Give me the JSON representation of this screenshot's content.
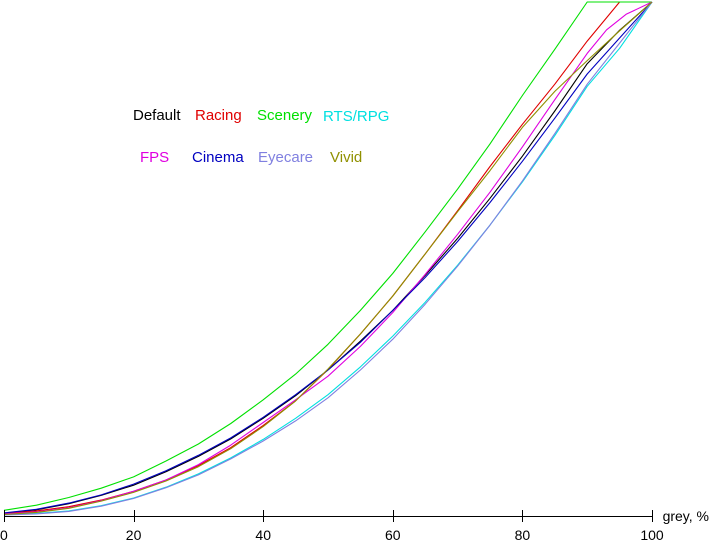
{
  "chart_data": {
    "type": "line",
    "xlabel": "grey, %",
    "ylabel": "",
    "xlim": [
      0,
      100
    ],
    "ylim": [
      0,
      100
    ],
    "x_ticks": [
      0,
      20,
      40,
      60,
      80,
      100
    ],
    "grid": false,
    "legend_placement": "upper-left",
    "series": [
      {
        "name": "Default",
        "color": "#000000",
        "x": [
          0,
          5,
          10,
          15,
          20,
          25,
          30,
          35,
          40,
          45,
          50,
          55,
          60,
          65,
          70,
          75,
          80,
          85,
          90,
          95,
          100
        ],
        "y": [
          0.5,
          1.2,
          2.4,
          4.0,
          6.0,
          8.6,
          11.6,
          15.0,
          19.0,
          23.4,
          28.4,
          34.0,
          40.0,
          46.8,
          54.0,
          61.8,
          70.0,
          78.8,
          88.0,
          94.5,
          100
        ]
      },
      {
        "name": "Racing",
        "color": "#e00000",
        "x": [
          0,
          5,
          10,
          15,
          20,
          25,
          30,
          35,
          40,
          45,
          50,
          55,
          60,
          65,
          70,
          75,
          80,
          85,
          90,
          95,
          100
        ],
        "y": [
          0.5,
          1.0,
          1.8,
          3.1,
          4.8,
          7.0,
          9.8,
          13.3,
          17.6,
          22.4,
          28.5,
          35.4,
          42.8,
          51.0,
          59.4,
          68.0,
          76.2,
          84.0,
          92.4,
          100,
          100
        ]
      },
      {
        "name": "Scenery",
        "color": "#00e000",
        "x": [
          0,
          5,
          10,
          15,
          20,
          25,
          30,
          35,
          40,
          45,
          50,
          55,
          60,
          65,
          70,
          75,
          80,
          85,
          90,
          93.7,
          100
        ],
        "y": [
          1.1,
          2.1,
          3.6,
          5.4,
          7.6,
          10.7,
          14.0,
          18.0,
          22.6,
          27.6,
          33.4,
          40.0,
          47.2,
          55.3,
          63.6,
          72.4,
          81.8,
          90.8,
          100,
          100,
          100
        ]
      },
      {
        "name": "RTS/RPG",
        "color": "#00e0e0",
        "x": [
          0,
          5,
          10,
          15,
          20,
          25,
          30,
          35,
          40,
          45,
          50,
          55,
          60,
          65,
          70,
          75,
          80,
          85,
          90,
          95,
          100
        ],
        "y": [
          0.3,
          0.5,
          1.0,
          2.0,
          3.5,
          5.6,
          8.2,
          11.3,
          14.9,
          19.0,
          23.6,
          29.0,
          35.0,
          41.6,
          48.8,
          56.6,
          65.0,
          74.0,
          83.6,
          91.0,
          100
        ]
      },
      {
        "name": "FPS",
        "color": "#e000e0",
        "x": [
          0,
          5,
          10,
          15,
          20,
          25,
          30,
          35,
          40,
          45,
          50,
          55,
          60,
          65,
          70,
          75,
          80,
          85,
          90,
          93,
          96,
          100
        ],
        "y": [
          0.4,
          0.8,
          1.6,
          3.0,
          4.8,
          7.0,
          10.0,
          13.8,
          18.2,
          22.6,
          27.2,
          33.0,
          39.6,
          47.0,
          54.8,
          63.0,
          71.8,
          81.0,
          90.0,
          94.6,
          97.6,
          100
        ]
      },
      {
        "name": "Cinema",
        "color": "#0000c0",
        "x": [
          0,
          5,
          10,
          15,
          20,
          25,
          30,
          35,
          40,
          45,
          50,
          55,
          60,
          65,
          70,
          75,
          80,
          85,
          90,
          95,
          100
        ],
        "y": [
          0.6,
          1.3,
          2.5,
          4.1,
          6.2,
          8.8,
          11.8,
          15.2,
          19.2,
          23.6,
          28.4,
          33.8,
          40.0,
          46.4,
          53.4,
          61.0,
          69.0,
          77.4,
          86.0,
          93.0,
          100
        ]
      },
      {
        "name": "Eyecare",
        "color": "#8080e0",
        "x": [
          0,
          5,
          10,
          15,
          20,
          25,
          30,
          35,
          40,
          45,
          50,
          55,
          60,
          65,
          70,
          75,
          80,
          85,
          90,
          95,
          100
        ],
        "y": [
          0.2,
          0.4,
          0.9,
          1.9,
          3.4,
          5.5,
          8.0,
          11.1,
          14.6,
          18.5,
          23.0,
          28.4,
          34.4,
          41.2,
          48.6,
          56.6,
          65.2,
          74.4,
          84.0,
          92.0,
          100
        ]
      },
      {
        "name": "Vivid",
        "color": "#909000",
        "x": [
          0,
          5,
          10,
          15,
          20,
          25,
          30,
          35,
          40,
          45,
          50,
          55,
          60,
          65,
          70,
          75,
          80,
          85,
          90,
          95,
          100
        ],
        "y": [
          0.3,
          0.7,
          1.5,
          2.9,
          4.6,
          6.8,
          9.6,
          13.1,
          17.4,
          22.4,
          28.6,
          35.4,
          42.8,
          51.0,
          59.2,
          67.2,
          75.6,
          82.6,
          88.6,
          94.4,
          100
        ]
      }
    ]
  }
}
